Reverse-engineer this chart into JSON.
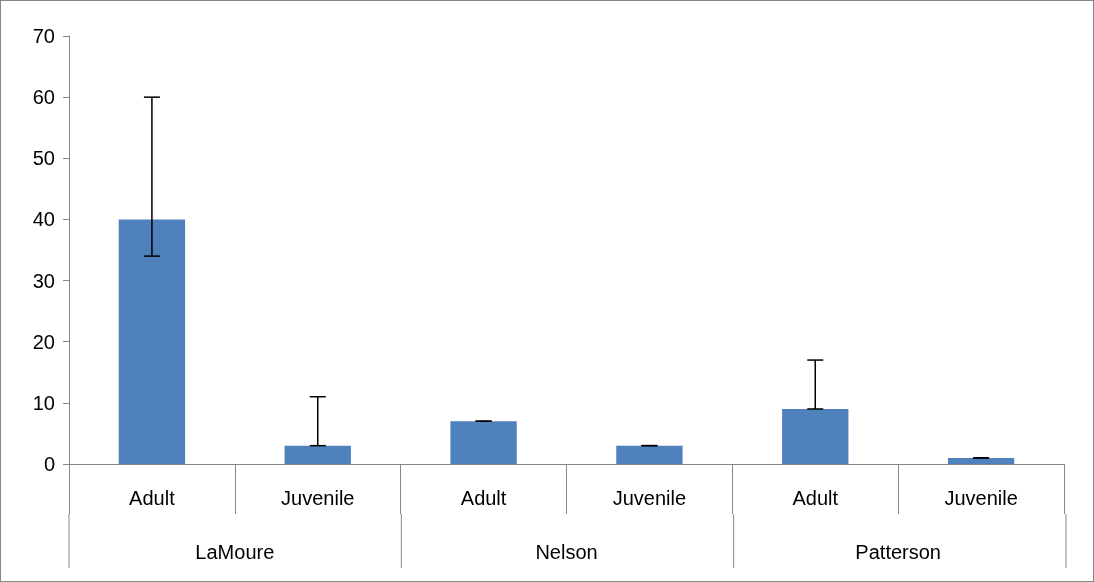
{
  "chart_data": {
    "type": "bar",
    "categories": [
      "Adult",
      "Juvenile",
      "Adult",
      "Juvenile",
      "Adult",
      "Juvenile"
    ],
    "values": [
      40,
      3,
      7,
      3,
      9,
      1
    ],
    "errors": [
      [
        34,
        60
      ],
      [
        3,
        11
      ],
      0,
      0,
      [
        9,
        17
      ],
      0
    ],
    "color": "#4f81bd",
    "ylim": [
      0,
      70
    ],
    "yticks": [
      0,
      10,
      20,
      30,
      40,
      50,
      60,
      70
    ],
    "annotations": [
      "LaMoure",
      "Nelson",
      "Patterson"
    ]
  }
}
